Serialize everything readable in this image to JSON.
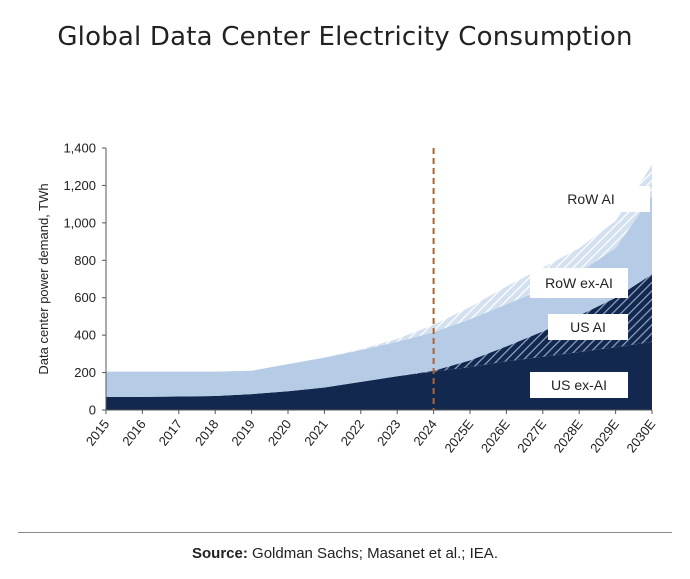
{
  "title": "Global Data Center Electricity Consumption",
  "source": {
    "label": "Source:",
    "text": " Goldman Sachs; Masanet et al.; IEA."
  },
  "colors": {
    "us_ex_ai": "#13284f",
    "us_ai_bg": "#13284f",
    "us_ai_stripe": "#8fa3c4",
    "row_ex_ai": "#b6cce6",
    "row_ai_bg": "#d3e0f0",
    "row_ai_stripe": "#ffffff",
    "divider": "#b5602a"
  },
  "chart_data": {
    "type": "area",
    "stacked": true,
    "x": [
      "2015",
      "2016",
      "2017",
      "2018",
      "2019",
      "2020",
      "2021",
      "2022",
      "2023",
      "2024",
      "2025E",
      "2026E",
      "2027E",
      "2028E",
      "2029E",
      "2030E"
    ],
    "ylabel": "Data center power demand, TWh",
    "ylim": [
      0,
      1400
    ],
    "yticks": [
      0,
      200,
      400,
      600,
      800,
      1000,
      1200,
      1400
    ],
    "ytick_labels": [
      "0",
      "200",
      "400",
      "600",
      "800",
      "1,000",
      "1,200",
      "1,400"
    ],
    "divider_at": "2024",
    "series": [
      {
        "name": "US ex-AI",
        "values": [
          70,
          70,
          72,
          75,
          85,
          100,
          120,
          150,
          180,
          205,
          230,
          260,
          285,
          310,
          335,
          365
        ]
      },
      {
        "name": "US AI",
        "values": [
          0,
          0,
          0,
          0,
          0,
          0,
          0,
          0,
          0,
          5,
          35,
          80,
          135,
          195,
          265,
          360
        ]
      },
      {
        "name": "RoW ex-AI",
        "values": [
          135,
          135,
          133,
          130,
          125,
          145,
          160,
          170,
          185,
          205,
          220,
          225,
          225,
          230,
          265,
          420
        ]
      },
      {
        "name": "RoW AI",
        "values": [
          0,
          0,
          0,
          0,
          0,
          0,
          0,
          5,
          15,
          40,
          65,
          95,
          115,
          130,
          145,
          165
        ]
      }
    ],
    "labels": [
      "RoW AI",
      "RoW ex-AI",
      "US AI",
      "US ex-AI"
    ]
  }
}
